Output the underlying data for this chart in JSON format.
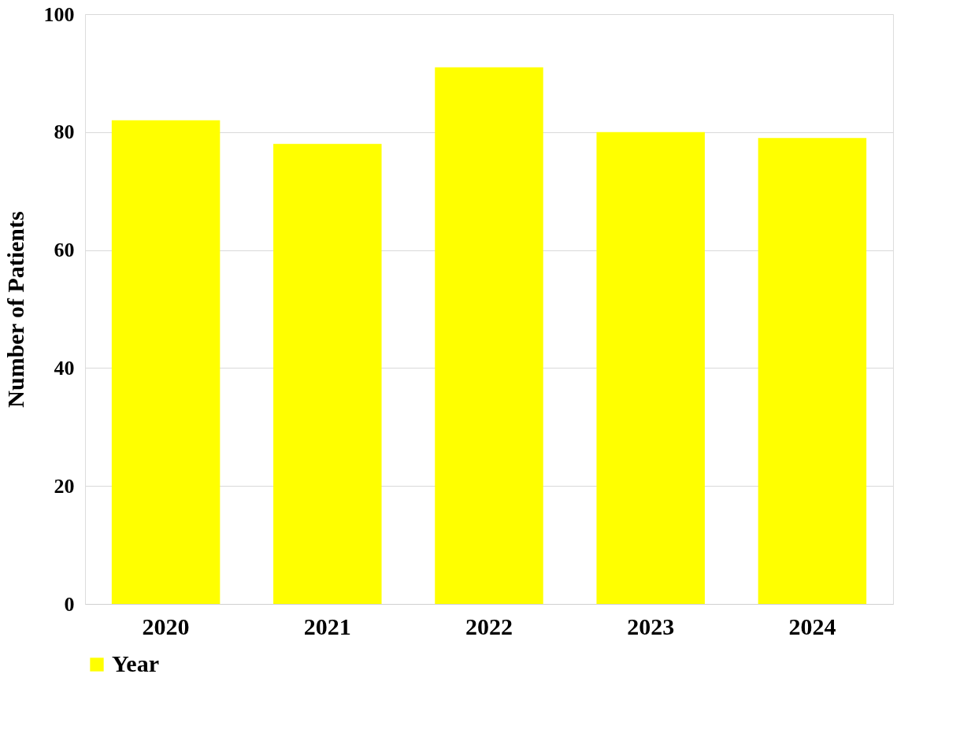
{
  "chart_data": {
    "type": "bar",
    "categories": [
      "2020",
      "2021",
      "2022",
      "2023",
      "2024"
    ],
    "series": [
      {
        "name": "Year",
        "color": "#ffff00",
        "values": [
          82,
          78,
          91,
          80,
          79
        ]
      }
    ],
    "ylabel": "Number of Patients",
    "ylim": [
      0,
      100
    ],
    "yticks": [
      0,
      20,
      40,
      60,
      80,
      100
    ],
    "grid": "y",
    "legend": "bottom"
  }
}
